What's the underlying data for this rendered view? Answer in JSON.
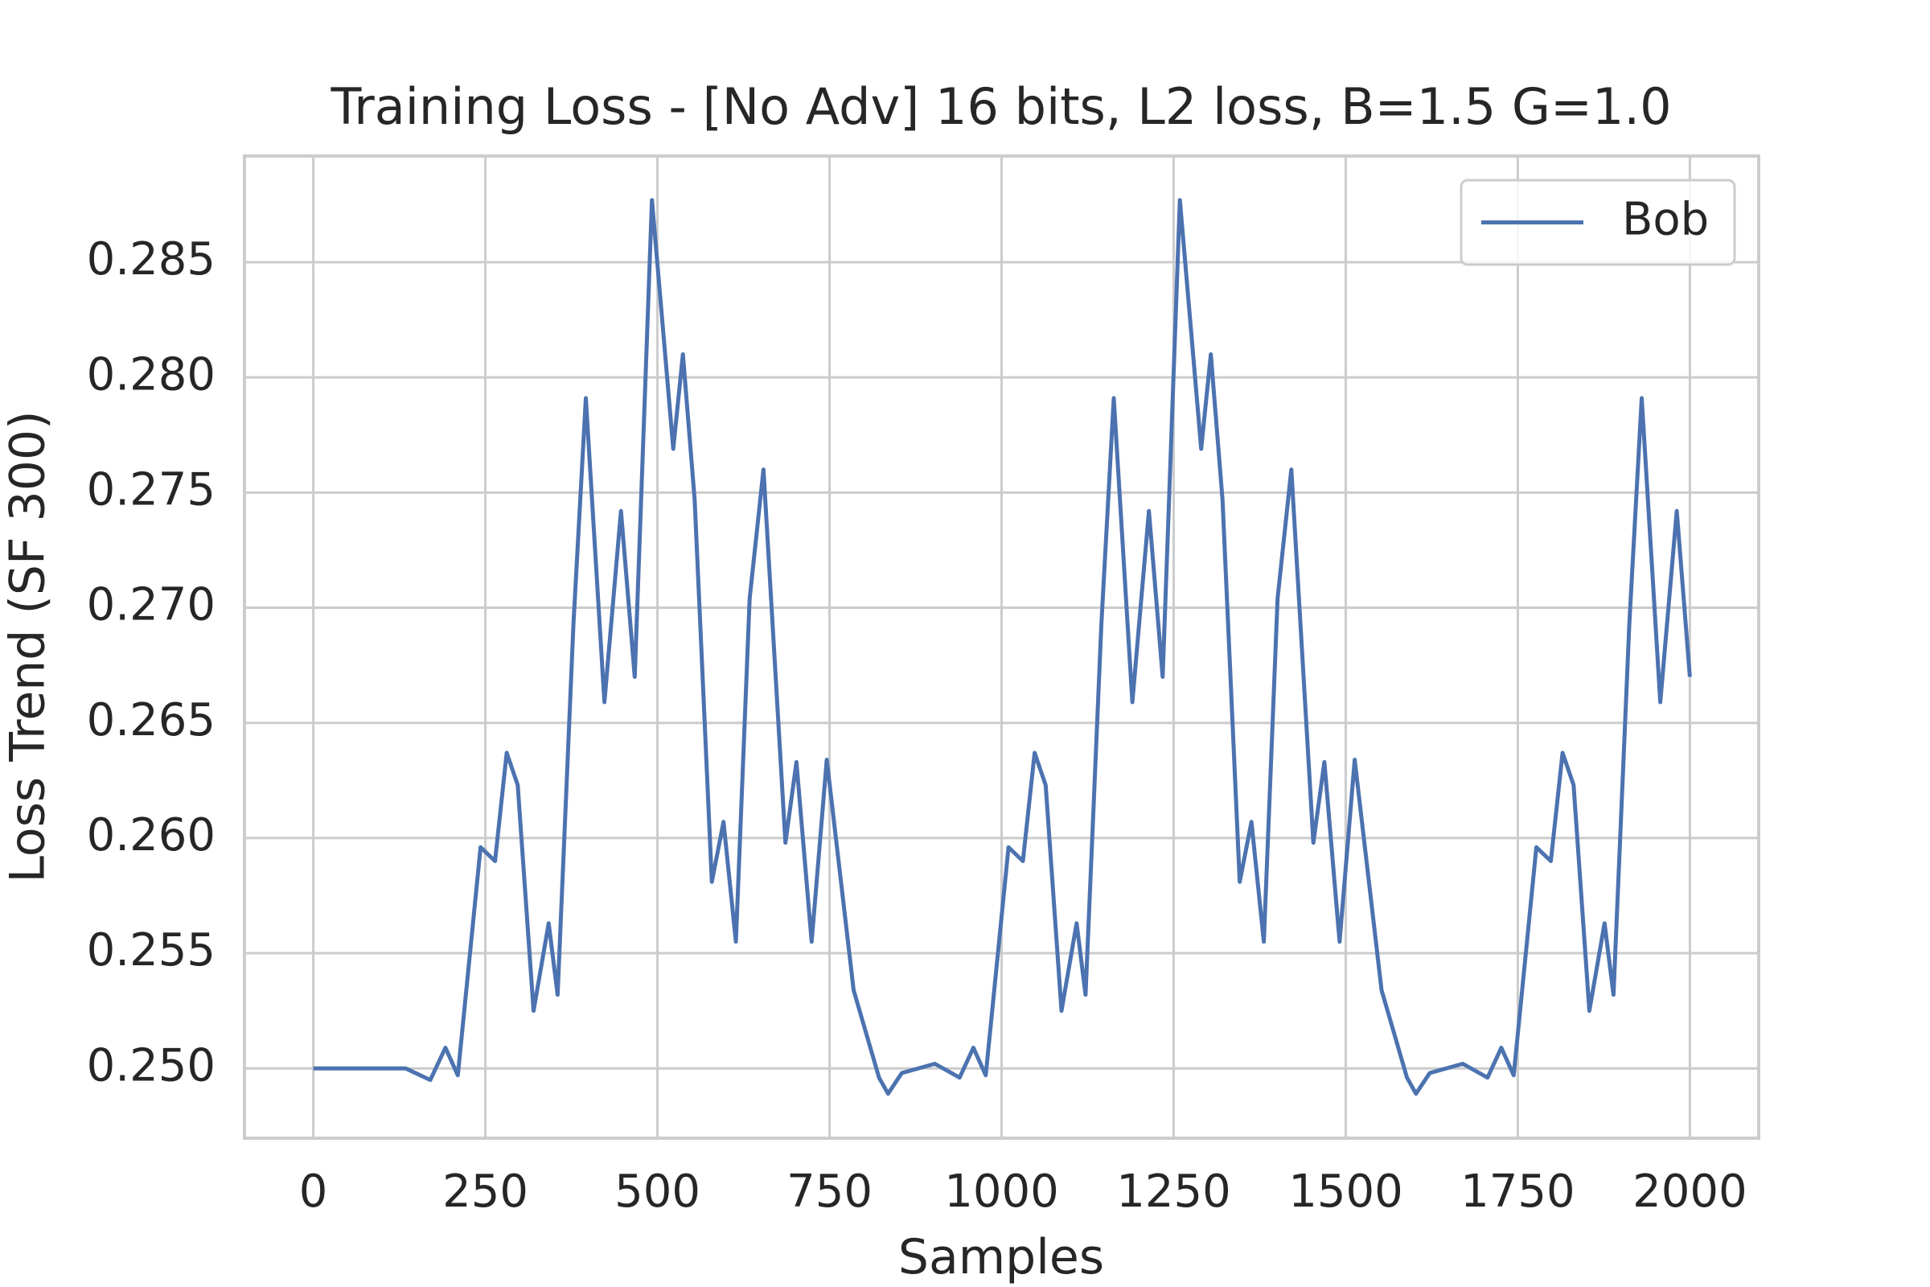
{
  "chart_data": {
    "type": "line",
    "title": "Training Loss - [No Adv] 16 bits, L2 loss, B=1.5 G=1.0",
    "x_label": "Samples",
    "y_label": "Loss Trend (SF 300)",
    "x": [
      0,
      134,
      170,
      192,
      210,
      243,
      264,
      281,
      297,
      320,
      342,
      355,
      378,
      396,
      423,
      447,
      467,
      492,
      523,
      537,
      554,
      579,
      596,
      614,
      634,
      654,
      686,
      702,
      724,
      746,
      785,
      822,
      835,
      855,
      903,
      939,
      959,
      977,
      1010,
      1031,
      1048,
      1064,
      1087,
      1109,
      1122,
      1145,
      1163,
      1190,
      1214,
      1234,
      1259,
      1290,
      1304,
      1321,
      1346,
      1363,
      1381,
      1401,
      1421,
      1453,
      1469,
      1491,
      1513,
      1552,
      1589,
      1602,
      1622,
      1670,
      1706,
      1726,
      1744,
      1777,
      1798,
      1815,
      1831,
      1854,
      1876,
      1889,
      1912,
      1930,
      1957,
      1981,
      2000
    ],
    "series": [
      {
        "name": "Bob",
        "color": "#4c72b0",
        "values": [
          0.25,
          0.25,
          0.2495,
          0.2509,
          0.2497,
          0.2596,
          0.259,
          0.2637,
          0.2623,
          0.2525,
          0.2563,
          0.2532,
          0.2693,
          0.2791,
          0.2659,
          0.2742,
          0.267,
          0.2877,
          0.2769,
          0.281,
          0.2747,
          0.2581,
          0.2607,
          0.2555,
          0.2704,
          0.276,
          0.2598,
          0.2633,
          0.2555,
          0.2634,
          0.2534,
          0.2496,
          0.2489,
          0.2498,
          0.2502,
          0.2496,
          0.2509,
          0.2497,
          0.2596,
          0.259,
          0.2637,
          0.2623,
          0.2525,
          0.2563,
          0.2532,
          0.2693,
          0.2791,
          0.2659,
          0.2742,
          0.267,
          0.2877,
          0.2769,
          0.281,
          0.2747,
          0.2581,
          0.2607,
          0.2555,
          0.2704,
          0.276,
          0.2598,
          0.2633,
          0.2555,
          0.2634,
          0.2534,
          0.2496,
          0.2489,
          0.2498,
          0.2502,
          0.2496,
          0.2509,
          0.2497,
          0.2596,
          0.259,
          0.2637,
          0.2623,
          0.2525,
          0.2563,
          0.2532,
          0.2693,
          0.2791,
          0.2659,
          0.2742,
          0.267
        ]
      }
    ],
    "xlim": [
      -100,
      2100
    ],
    "ylim": [
      0.24697,
      0.28961
    ],
    "xticks": [
      0,
      250,
      500,
      750,
      1000,
      1250,
      1500,
      1750,
      2000
    ],
    "yticks": [
      {
        "value": 0.25,
        "label": "0.250"
      },
      0.255,
      {
        "value": 0.26,
        "label": "0.260"
      },
      0.265,
      {
        "value": 0.27,
        "label": "0.270"
      },
      0.275,
      {
        "value": 0.28,
        "label": "0.280"
      },
      0.285
    ],
    "grid": true,
    "legend": "upper right"
  }
}
